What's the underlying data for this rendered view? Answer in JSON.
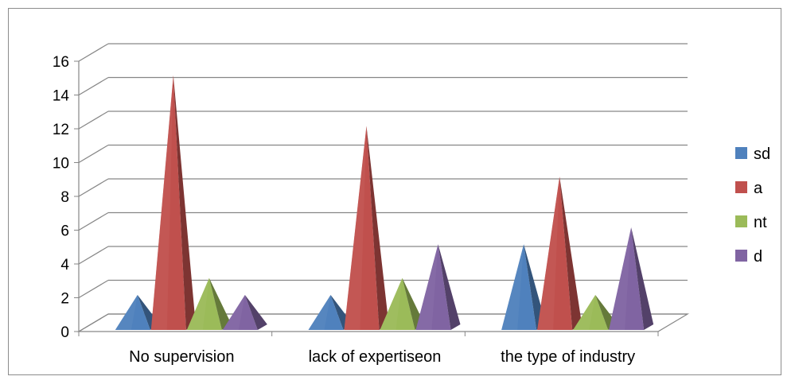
{
  "chart_data": {
    "type": "bar",
    "style": "3d-pyramid",
    "categories": [
      "No supervision",
      "lack of expertiseon",
      "the type of industry"
    ],
    "series": [
      {
        "name": "sd",
        "color": "#4F81BD",
        "values": [
          2,
          2,
          5
        ]
      },
      {
        "name": "a",
        "color": "#C0504D",
        "values": [
          15,
          12,
          9
        ]
      },
      {
        "name": "nt",
        "color": "#9BBB59",
        "values": [
          3,
          3,
          2
        ]
      },
      {
        "name": "d",
        "color": "#8064A2",
        "values": [
          2,
          5,
          6
        ]
      }
    ],
    "y_ticks": [
      "0",
      "2",
      "4",
      "6",
      "8",
      "10",
      "12",
      "14",
      "16"
    ],
    "ylim": [
      0,
      16
    ],
    "grid": true,
    "legend_position": "right",
    "title": "",
    "xlabel": "",
    "ylabel": ""
  }
}
